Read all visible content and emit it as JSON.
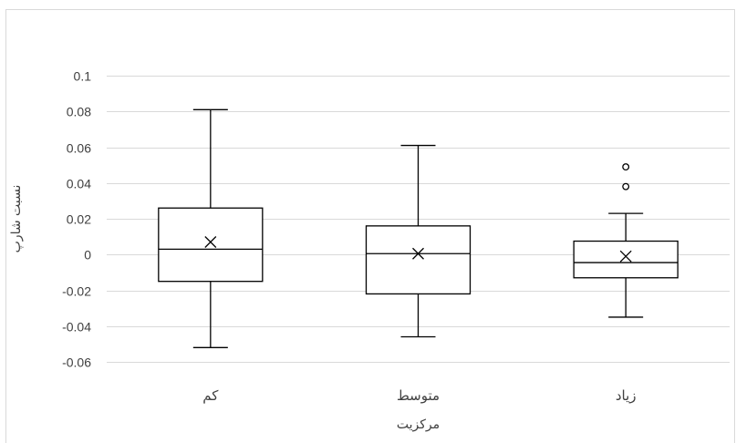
{
  "chart_data": {
    "type": "box",
    "title": "",
    "xlabel": "مرکزیت",
    "ylabel": "نسبت شارپ",
    "ylim": [
      -0.06,
      0.1
    ],
    "yticks": [
      -0.06,
      -0.04,
      -0.02,
      0,
      0.02,
      0.04,
      0.06,
      0.08,
      0.1
    ],
    "ytick_labels": [
      "-0.06",
      "-0.04",
      "-0.02",
      "0",
      "0.02",
      "0.04",
      "0.06",
      "0.08",
      "0.1"
    ],
    "grid": true,
    "categories": [
      "کم",
      "متوسط",
      "زیاد"
    ],
    "boxes": [
      {
        "category": "کم",
        "whisker_low": -0.052,
        "q1": -0.015,
        "median": 0.003,
        "q3": 0.026,
        "whisker_high": 0.081,
        "mean": 0.007,
        "outliers": []
      },
      {
        "category": "متوسط",
        "whisker_low": -0.046,
        "q1": -0.022,
        "median": 0.0005,
        "q3": 0.016,
        "whisker_high": 0.061,
        "mean": 0.0005,
        "outliers": []
      },
      {
        "category": "زیاد",
        "whisker_low": -0.035,
        "q1": -0.013,
        "median": -0.0045,
        "q3": 0.0075,
        "whisker_high": 0.023,
        "mean": -0.001,
        "outliers": [
          0.038,
          0.049
        ]
      }
    ],
    "colors": {
      "box_stroke": "#000000",
      "grid": "#d9d9d9",
      "text": "#404040"
    }
  }
}
